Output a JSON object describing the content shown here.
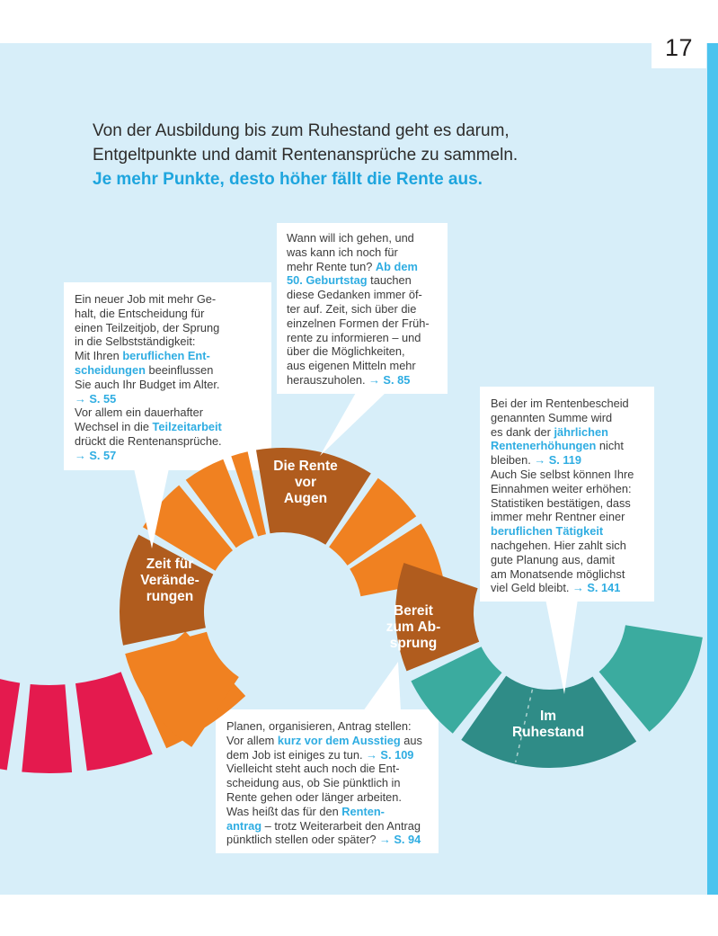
{
  "page_number": "17",
  "intro": {
    "lines": [
      "Von der Ausbildung bis zum Ruhestand geht es darum,",
      "Entgeltpunkte und damit Rentenansprüche zu sammeln."
    ],
    "highlight": "Je mehr Punkte, desto höher fällt die Rente aus."
  },
  "colors": {
    "panel_bg": "#d7eef9",
    "accent_stripe": "#4bc3ee",
    "pink": "#e41a4e",
    "orange": "#f08121",
    "brown": "#b05c1e",
    "teal": "#3bab9f",
    "teal_dark": "#2f8c87",
    "link_blue": "#2fade2",
    "intro_highlight_blue": "#1ea5de",
    "body_text": "#3c3c3c"
  },
  "stages": [
    {
      "id": "zeit-fuer-veraenderungen",
      "label": "Zeit für\nVerände-\nrungen"
    },
    {
      "id": "die-rente-vor-augen",
      "label": "Die Rente\nvor\nAugen"
    },
    {
      "id": "bereit-zum-absprung",
      "label": "Bereit\nzum Ab-\nsprung"
    },
    {
      "id": "im-ruhestand",
      "label": "Im\nRuhestand"
    }
  ],
  "callouts": {
    "job_changes": {
      "runs": [
        {
          "t": "Ein neuer Job mit mehr Ge-\nhalt, die Entscheidung für\neinen Teilzeitjob, der Sprung\nin die Selbstständigkeit:\nMit Ihren "
        },
        {
          "t": "beruflichen Ent-\nscheidungen",
          "hl": 1
        },
        {
          "t": " beeinflussen\nSie auch Ihr Budget im Alter.\n"
        },
        {
          "t": "→ S. 55",
          "hl": 1
        },
        {
          "t": "\nVor allem ein dauerhafter\nWechsel in die "
        },
        {
          "t": "Teilzeitarbeit",
          "hl": 1
        },
        {
          "t": "\ndrückt die Rentenansprüche.\n"
        },
        {
          "t": "→ S. 57",
          "hl": 1
        }
      ]
    },
    "early_retirement": {
      "runs": [
        {
          "t": "Wann will ich gehen, und\nwas kann ich noch für\nmehr Rente tun? "
        },
        {
          "t": "Ab dem\n50. Geburtstag",
          "hl": 1
        },
        {
          "t": " tauchen\ndiese Gedanken immer öf-\nter auf. Zeit, sich über die\neinzelnen Formen der Früh-\nrente zu informieren – und\nüber die Möglichkeiten,\naus eigenen Mitteln mehr\nherauszuholen. "
        },
        {
          "t": "→ S. 85",
          "hl": 1
        }
      ]
    },
    "pension_increase": {
      "runs": [
        {
          "t": "Bei der im Rentenbescheid\ngenannten Summe wird\nes dank der "
        },
        {
          "t": "jährlichen\nRentenerhöhungen",
          "hl": 1
        },
        {
          "t": " nicht\nbleiben. "
        },
        {
          "t": "→ S. 119",
          "hl": 1
        },
        {
          "t": "\nAuch Sie selbst können Ihre\nEinnahmen weiter erhöhen:\nStatistiken bestätigen, dass\nimmer mehr Rentner einer\n"
        },
        {
          "t": "beruflichen Tätigkeit",
          "hl": 1
        },
        {
          "t": "\nnachgehen. Hier zahlt sich\ngute Planung aus, damit\nam Monatsende möglichst\nviel Geld bleibt. "
        },
        {
          "t": "→ S. 141",
          "hl": 1
        }
      ]
    },
    "retirement_application": {
      "runs": [
        {
          "t": "Planen, organisieren, Antrag stellen:\nVor allem "
        },
        {
          "t": "kurz vor dem Ausstieg",
          "hl": 1
        },
        {
          "t": " aus\ndem Job ist einiges zu tun. "
        },
        {
          "t": "→ S. 109",
          "hl": 1
        },
        {
          "t": "\nVielleicht steht auch noch die Ent-\nscheidung aus, ob Sie pünktlich in\nRente gehen oder länger arbeiten.\nWas heißt das für den "
        },
        {
          "t": "Renten-\nantrag",
          "hl": 1
        },
        {
          "t": " – trotz Weiterarbeit den Antrag\npünktlich stellen oder später? "
        },
        {
          "t": "→ S. 94",
          "hl": 1
        }
      ]
    }
  }
}
